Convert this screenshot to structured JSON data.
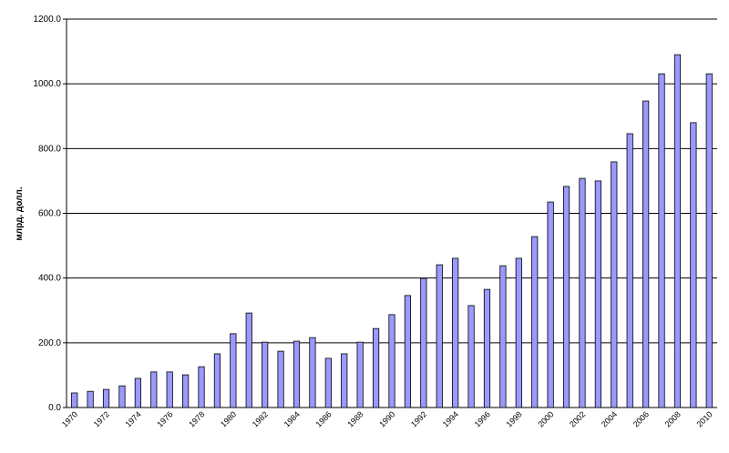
{
  "chart_data": {
    "type": "bar",
    "y_label": "млрд. долл.",
    "categories": [
      "1970",
      null,
      "1972",
      null,
      "1974",
      null,
      "1976",
      null,
      "1978",
      null,
      "1980",
      null,
      "1982",
      null,
      "1984",
      null,
      "1986",
      null,
      "1988",
      null,
      "1990",
      null,
      "1992",
      null,
      "1994",
      null,
      "1996",
      null,
      "1998",
      null,
      "2000",
      null,
      "2002",
      null,
      "2004",
      null,
      "2006",
      null,
      "2008",
      null,
      "2010"
    ],
    "values": [
      45,
      50,
      56,
      67,
      90,
      110,
      110,
      101,
      126,
      166,
      228,
      292,
      202,
      174,
      205,
      216,
      152,
      166,
      202,
      244,
      287,
      346,
      399,
      441,
      461,
      315,
      365,
      438,
      461,
      528,
      635,
      683,
      708,
      700,
      759,
      846,
      947,
      1031,
      1090,
      880,
      1031
    ],
    "color": "#9999ff",
    "ylim": [
      0,
      1200
    ],
    "yticks": [
      {
        "value": 0,
        "label": "0.0"
      },
      {
        "value": 200,
        "label": "200.0"
      },
      {
        "value": 400,
        "label": "400.0"
      },
      {
        "value": 600,
        "label": "600.0"
      },
      {
        "value": 800,
        "label": "800.0"
      },
      {
        "value": 1000,
        "label": "1000.0"
      },
      {
        "value": 1200,
        "label": "1200.0"
      }
    ],
    "grid": true
  }
}
